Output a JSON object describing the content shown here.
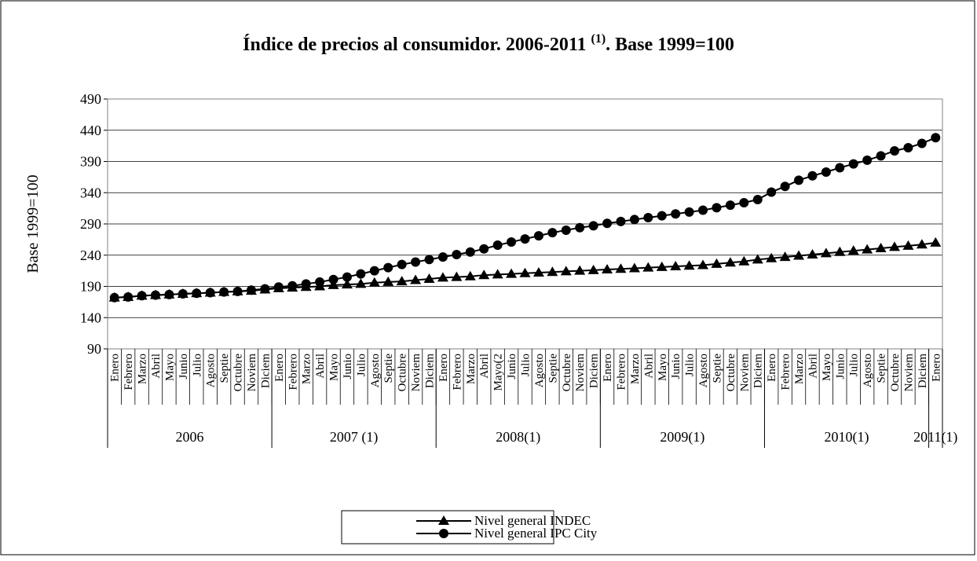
{
  "chart_data": {
    "type": "line",
    "title": "Índice de precios al consumidor. 2006-2011 ",
    "title_sup": "(1)",
    "title_end": ". Base 1999=100",
    "ylabel": "Base 1999=100",
    "categories": [
      "Enero",
      "Febrero",
      "Marzo",
      "Abril",
      "Mayo",
      "Junio",
      "Julio",
      "Agosto",
      "Septie",
      "Octubre",
      "Noviem",
      "Diciem",
      "Enero",
      "Febrero",
      "Marzo",
      "Abril",
      "Mayo",
      "Junio",
      "Julio",
      "Agosto",
      "Septie",
      "Octubre",
      "Noviem",
      "Diciem",
      "Enero",
      "Febrero",
      "Marzo",
      "Abril",
      "Mayo(2",
      "Junio",
      "Julio",
      "Agosto",
      "Septie",
      "Octubre",
      "Noviem",
      "Diciem",
      "Enero",
      "Febrero",
      "Marzo",
      "Abril",
      "Mayo",
      "Junio",
      "Julio",
      "Agosto",
      "Septie",
      "Octubre",
      "Noviem",
      "Diciem",
      "Enero",
      "Febrero",
      "Marzo",
      "Abril",
      "Mayo",
      "Junio",
      "Julio",
      "Agosto",
      "Septie",
      "Octubre",
      "Noviem",
      "Diciem",
      "Enero"
    ],
    "groups": [
      "2006",
      "2007 (1)",
      "2008(1)",
      "2009(1)",
      "2010(1)",
      "2011(1)"
    ],
    "series": [
      {
        "name": "Nivel general INDEC",
        "color": "#000000",
        "marker": "triangle",
        "values": [
          172,
          173,
          175,
          176,
          177,
          178,
          179,
          180,
          181,
          182,
          183,
          185,
          187,
          188,
          189,
          190,
          192,
          193,
          194,
          196,
          197,
          198,
          200,
          202,
          204,
          205,
          206,
          208,
          209,
          210,
          211,
          212,
          213,
          214,
          215,
          216,
          217,
          218,
          219,
          220,
          221,
          222,
          223,
          224,
          226,
          228,
          230,
          233,
          235,
          237,
          239,
          241,
          243,
          245,
          247,
          249,
          251,
          253,
          255,
          257,
          260
        ]
      },
      {
        "name": "Nivel general IPC City",
        "color": "#000000",
        "marker": "circle",
        "values": [
          172,
          173,
          175,
          176,
          177,
          178,
          179,
          180,
          181,
          182,
          184,
          186,
          189,
          191,
          194,
          197,
          201,
          205,
          210,
          215,
          220,
          225,
          229,
          233,
          237,
          241,
          245,
          250,
          256,
          261,
          266,
          271,
          276,
          280,
          284,
          287,
          291,
          294,
          297,
          300,
          303,
          306,
          309,
          312,
          316,
          320,
          324,
          329,
          341,
          350,
          360,
          367,
          373,
          380,
          386,
          392,
          399,
          407,
          412,
          419,
          428
        ]
      }
    ],
    "ylim": [
      90,
      490
    ],
    "yticks": [
      90,
      140,
      190,
      240,
      290,
      340,
      390,
      440,
      490
    ],
    "grid": true,
    "legend": "bottom"
  }
}
